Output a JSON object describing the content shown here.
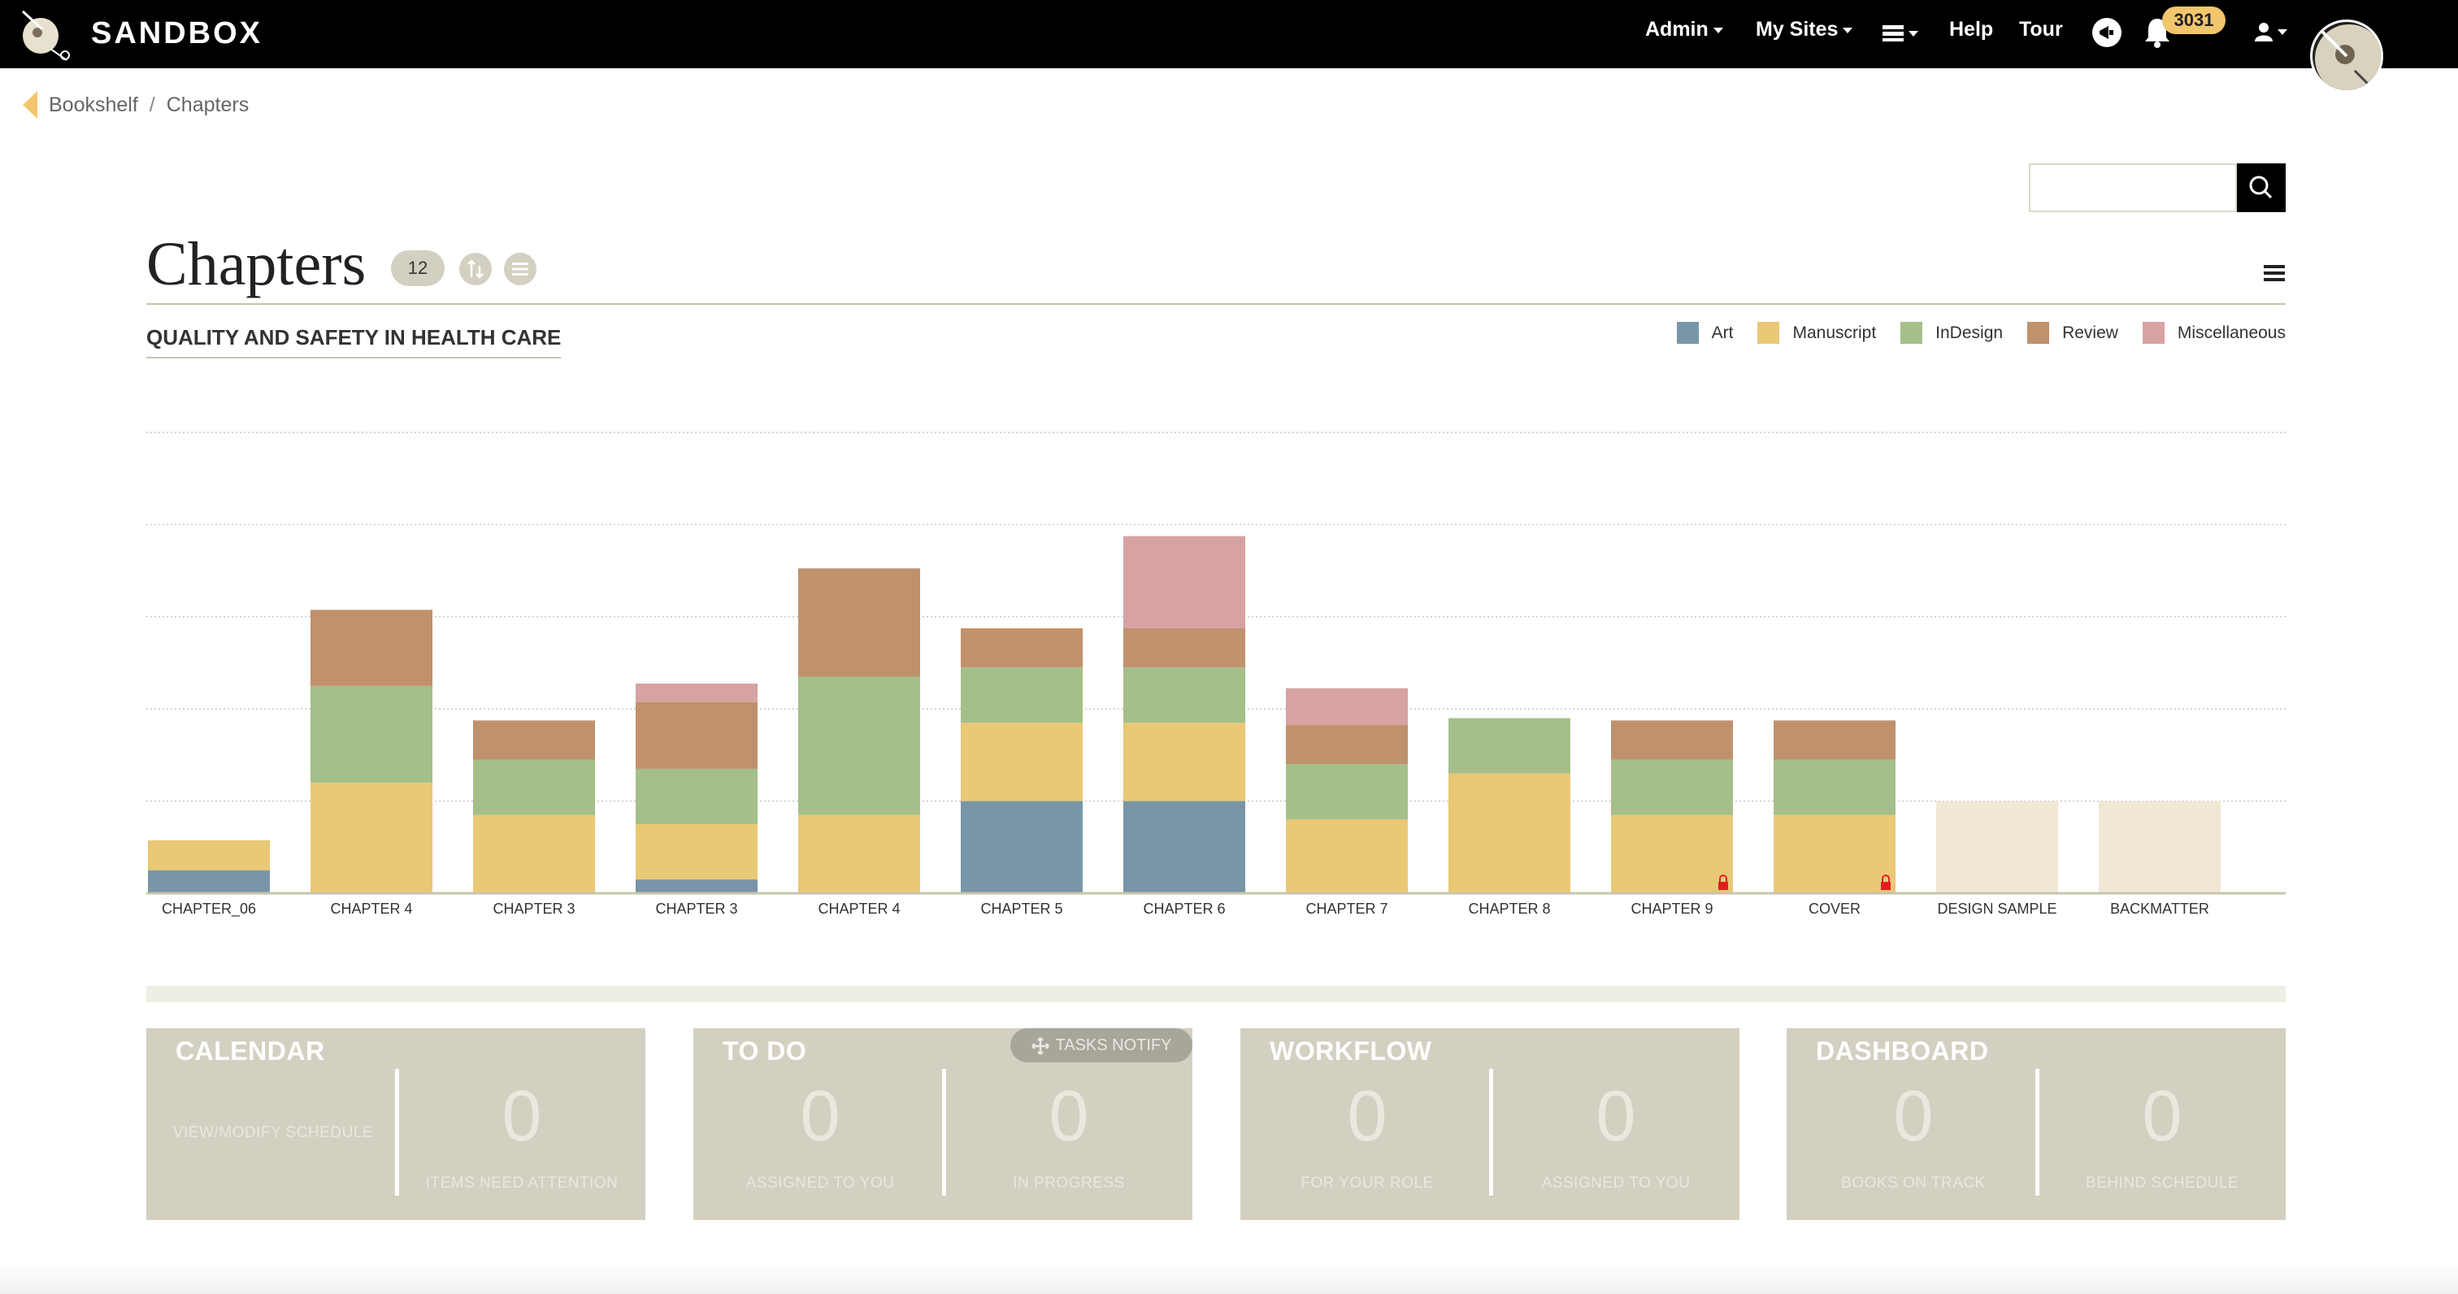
{
  "app": {
    "brand": "SANDBOX",
    "nav": {
      "admin": "Admin",
      "my_sites": "My Sites",
      "help": "Help",
      "tour": "Tour",
      "notification_count": "3031"
    }
  },
  "breadcrumb": [
    "Bookshelf",
    "Chapters"
  ],
  "search": {
    "placeholder": ""
  },
  "page": {
    "title": "Chapters",
    "count": "12",
    "book_title": "QUALITY AND SAFETY IN HEALTH CARE"
  },
  "legend": [
    {
      "label": "Art",
      "color": "#7896a8"
    },
    {
      "label": "Manuscript",
      "color": "#e9c876"
    },
    {
      "label": "InDesign",
      "color": "#a5bf8a"
    },
    {
      "label": "Review",
      "color": "#c0916d"
    },
    {
      "label": "Miscellaneous",
      "color": "#d6a3a2"
    }
  ],
  "chart_data": {
    "type": "bar",
    "stacked": true,
    "categories": [
      "CHAPTER_06",
      "CHAPTER 4",
      "CHAPTER 3",
      "CHAPTER 3",
      "CHAPTER 4",
      "CHAPTER 5",
      "CHAPTER 6",
      "CHAPTER 7",
      "CHAPTER 8",
      "CHAPTER 9",
      "COVER",
      "DESIGN SAMPLE",
      "BACKMATTER"
    ],
    "series": [
      {
        "name": "Art",
        "color": "#7896a8",
        "values": [
          0.5,
          0,
          0,
          0.3,
          0,
          2,
          2,
          0,
          0,
          0,
          0,
          0,
          0
        ]
      },
      {
        "name": "Manuscript",
        "color": "#e9c876",
        "values": [
          0.65,
          2.4,
          1.7,
          1.2,
          1.7,
          1.7,
          1.7,
          1.6,
          2.6,
          1.7,
          1.7,
          0,
          0
        ]
      },
      {
        "name": "InDesign",
        "color": "#a5bf8a",
        "values": [
          0,
          2.1,
          1.2,
          1.2,
          3,
          1.2,
          1.2,
          1.2,
          1.2,
          1.2,
          1.2,
          0,
          0
        ]
      },
      {
        "name": "Review",
        "color": "#c0916d",
        "values": [
          0,
          1.65,
          0.85,
          1.45,
          2.35,
          0.85,
          0.85,
          0.85,
          0,
          0.85,
          0.85,
          0,
          0
        ]
      },
      {
        "name": "Miscellaneous",
        "color": "#d6a3a2",
        "values": [
          0,
          0,
          0,
          0.4,
          0,
          0,
          2,
          0.8,
          0,
          0,
          0,
          0,
          0
        ]
      }
    ],
    "placeholder": {
      "color": "#f0e8d4",
      "values": [
        0,
        0,
        0,
        0,
        0,
        0,
        0,
        0,
        0,
        0,
        0,
        2,
        2
      ]
    },
    "locked": [
      false,
      false,
      false,
      false,
      false,
      false,
      false,
      false,
      false,
      true,
      true,
      false,
      false
    ],
    "ylim": [
      0,
      10
    ],
    "grid": true,
    "legend_position": "top-right"
  },
  "cards": {
    "calendar": {
      "title": "CALENDAR",
      "left_label": "VIEW/MODIFY SCHEDULE",
      "right_value": "0",
      "right_label": "ITEMS NEED ATTENTION"
    },
    "todo": {
      "title": "TO DO",
      "notify": "TASKS NOTIFY",
      "left_value": "0",
      "left_label": "ASSIGNED TO YOU",
      "right_value": "0",
      "right_label": "IN PROGRESS"
    },
    "workflow": {
      "title": "WORKFLOW",
      "left_value": "0",
      "left_label": "FOR YOUR ROLE",
      "right_value": "0",
      "right_label": "ASSIGNED TO YOU"
    },
    "dashboard": {
      "title": "DASHBOARD",
      "left_value": "0",
      "left_label": "BOOKS ON TRACK",
      "right_value": "0",
      "right_label": "BEHIND SCHEDULE"
    }
  }
}
